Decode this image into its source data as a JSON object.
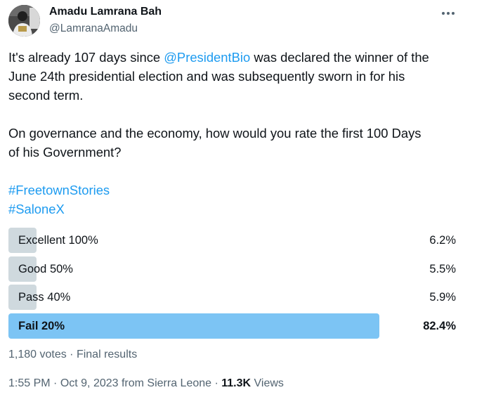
{
  "author": {
    "name": "Amadu Lamrana Bah",
    "handle": "@LamranaAmadu"
  },
  "tweet": {
    "line1_prefix": "It's already 107 days since ",
    "mention": "@PresidentBio",
    "line1_suffix": " was declared the winner of the",
    "line2": "June 24th presidential election and was subsequently sworn in for his",
    "line3": "second term.",
    "line4": "On governance and the economy, how would you rate the first 100 Days",
    "line5": "of his Government?",
    "hashtags": [
      "#FreetownStories",
      "#SaloneX"
    ]
  },
  "poll": {
    "options": [
      {
        "label": "Excellent 100%",
        "percent": "6.2%",
        "value": 6.2
      },
      {
        "label": "Good 50%",
        "percent": "5.5%",
        "value": 5.5
      },
      {
        "label": "Pass 40%",
        "percent": "5.9%",
        "value": 5.9
      },
      {
        "label": "Fail 20%",
        "percent": "82.4%",
        "value": 82.4
      }
    ],
    "votes": "1,180 votes",
    "separator": " · ",
    "status": "Final results"
  },
  "meta": {
    "time": "1:55 PM",
    "separator": " · ",
    "date": "Oct 9, 2023",
    "source": " from Sierra Leone",
    "views_count": "11.3K",
    "views_label": " Views"
  },
  "colors": {
    "accent": "#1d9bf0",
    "winner_bar": "#7cc4f4",
    "bar": "#cfd9de",
    "secondary_text": "#536471"
  },
  "icons": {
    "more": "more-horizontal-icon"
  }
}
